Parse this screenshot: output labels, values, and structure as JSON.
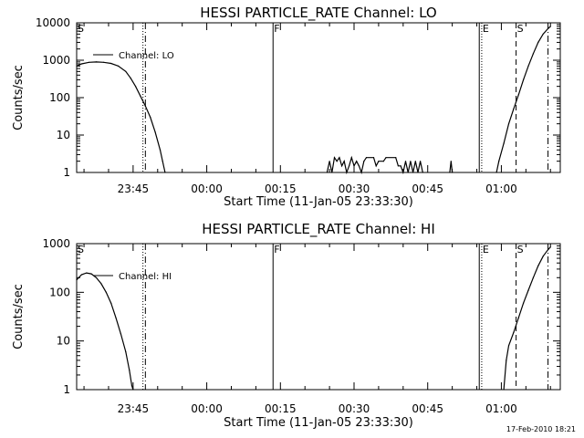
{
  "chart_data": [
    {
      "type": "line",
      "title": "HESSI PARTICLE_RATE Channel: LO",
      "xlabel": "Start Time (11-Jan-05 23:33:30)",
      "ylabel": "Counts/sec",
      "yscale": "log",
      "ylim": [
        1,
        10000
      ],
      "xlim": [
        "23:33:30",
        "01:12:00"
      ],
      "x_ticks": [
        "23:45",
        "00:00",
        "00:15",
        "00:30",
        "00:45",
        "01:00"
      ],
      "y_ticks": [
        "1",
        "10",
        "100",
        "1000",
        "10000"
      ],
      "legend": {
        "position": "top-left",
        "entries": [
          "Channel: LO"
        ]
      },
      "grid": false,
      "event_markers": [
        {
          "label": "S",
          "time": "23:33:30",
          "style": "solid"
        },
        {
          "label": "",
          "time": "23:47:00",
          "style": "dotted"
        },
        {
          "label": "",
          "time": "23:47:30",
          "style": "dashdot"
        },
        {
          "label": "F",
          "time": "00:13:30",
          "style": "solid"
        },
        {
          "label": "",
          "time": "00:55:30",
          "style": "solid"
        },
        {
          "label": "E",
          "time": "00:56:00",
          "style": "dotted"
        },
        {
          "label": "S",
          "time": "01:03:00",
          "style": "dashed"
        },
        {
          "label": "",
          "time": "01:09:30",
          "style": "dashdot"
        }
      ],
      "series": [
        {
          "name": "Channel: LO",
          "segments": [
            [
              [
                "23:33:30",
                700
              ],
              [
                "23:34:30",
                800
              ],
              [
                "23:36:00",
                880
              ],
              [
                "23:37:30",
                900
              ],
              [
                "23:39:00",
                880
              ],
              [
                "23:40:30",
                820
              ],
              [
                "23:42:00",
                700
              ],
              [
                "23:43:30",
                500
              ],
              [
                "23:44:30",
                330
              ],
              [
                "23:45:30",
                200
              ],
              [
                "23:46:30",
                110
              ],
              [
                "23:47:30",
                60
              ],
              [
                "23:48:30",
                30
              ],
              [
                "23:49:30",
                12
              ],
              [
                "23:50:30",
                4
              ],
              [
                "23:51:00",
                2
              ],
              [
                "23:51:30",
                1
              ]
            ],
            [
              [
                "00:24:30",
                1
              ],
              [
                "00:25:00",
                2
              ],
              [
                "00:25:30",
                1
              ],
              [
                "00:26:00",
                2.5
              ],
              [
                "00:26:30",
                2
              ],
              [
                "00:27:00",
                2.5
              ],
              [
                "00:27:30",
                1.5
              ],
              [
                "00:28:00",
                2
              ],
              [
                "00:28:30",
                1
              ],
              [
                "00:29:00",
                1.5
              ],
              [
                "00:29:30",
                2.5
              ],
              [
                "00:30:00",
                1.5
              ],
              [
                "00:30:30",
                2
              ],
              [
                "00:31:00",
                1.5
              ],
              [
                "00:31:30",
                1
              ],
              [
                "00:32:00",
                2
              ],
              [
                "00:32:30",
                2.5
              ],
              [
                "00:34:00",
                2.5
              ],
              [
                "00:34:30",
                1.5
              ],
              [
                "00:35:00",
                2
              ],
              [
                "00:36:00",
                2
              ],
              [
                "00:36:30",
                2.5
              ],
              [
                "00:38:30",
                2.5
              ],
              [
                "00:39:00",
                1.5
              ],
              [
                "00:39:30",
                1.5
              ],
              [
                "00:40:00",
                1
              ],
              [
                "00:40:30",
                2
              ],
              [
                "00:41:00",
                1
              ],
              [
                "00:41:30",
                2
              ],
              [
                "00:42:00",
                1
              ],
              [
                "00:42:30",
                2
              ],
              [
                "00:43:00",
                1
              ],
              [
                "00:43:30",
                2
              ],
              [
                "00:44:00",
                1
              ]
            ],
            [
              [
                "00:49:30",
                1
              ],
              [
                "00:49:45",
                2
              ],
              [
                "00:50:00",
                1
              ]
            ],
            [
              [
                "00:59:00",
                1
              ],
              [
                "00:59:30",
                2
              ],
              [
                "01:00:30",
                6
              ],
              [
                "01:01:30",
                20
              ],
              [
                "01:02:30",
                50
              ],
              [
                "01:03:30",
                120
              ],
              [
                "01:04:30",
                300
              ],
              [
                "01:05:30",
                700
              ],
              [
                "01:06:30",
                1500
              ],
              [
                "01:07:30",
                3000
              ],
              [
                "01:08:30",
                5000
              ],
              [
                "01:09:30",
                7000
              ],
              [
                "01:10:00",
                8000
              ]
            ]
          ]
        }
      ]
    },
    {
      "type": "line",
      "title": "HESSI PARTICLE_RATE Channel: HI",
      "xlabel": "Start Time (11-Jan-05 23:33:30)",
      "ylabel": "Counts/sec",
      "yscale": "log",
      "ylim": [
        1,
        1000
      ],
      "xlim": [
        "23:33:30",
        "01:12:00"
      ],
      "x_ticks": [
        "23:45",
        "00:00",
        "00:15",
        "00:30",
        "00:45",
        "01:00"
      ],
      "y_ticks": [
        "1",
        "10",
        "100",
        "1000"
      ],
      "legend": {
        "position": "top-left",
        "entries": [
          "Channel: HI"
        ]
      },
      "grid": false,
      "event_markers": [
        {
          "label": "S",
          "time": "23:33:30",
          "style": "solid"
        },
        {
          "label": "",
          "time": "23:47:00",
          "style": "dotted"
        },
        {
          "label": "",
          "time": "23:47:30",
          "style": "dashdot"
        },
        {
          "label": "F",
          "time": "00:13:30",
          "style": "solid"
        },
        {
          "label": "",
          "time": "00:55:30",
          "style": "solid"
        },
        {
          "label": "E",
          "time": "00:56:00",
          "style": "dotted"
        },
        {
          "label": "S",
          "time": "01:03:00",
          "style": "dashed"
        },
        {
          "label": "",
          "time": "01:09:30",
          "style": "dashdot"
        }
      ],
      "series": [
        {
          "name": "Channel: HI",
          "segments": [
            [
              [
                "23:33:30",
                180
              ],
              [
                "23:34:30",
                230
              ],
              [
                "23:35:30",
                250
              ],
              [
                "23:36:30",
                240
              ],
              [
                "23:37:30",
                200
              ],
              [
                "23:38:30",
                150
              ],
              [
                "23:39:30",
                100
              ],
              [
                "23:40:30",
                60
              ],
              [
                "23:41:30",
                30
              ],
              [
                "23:42:30",
                14
              ],
              [
                "23:43:30",
                6
              ],
              [
                "23:44:15",
                2.5
              ],
              [
                "23:44:45",
                1.2
              ],
              [
                "23:45:00",
                1
              ]
            ],
            [
              [
                "01:00:30",
                1
              ],
              [
                "01:01:00",
                4
              ],
              [
                "01:01:30",
                8
              ],
              [
                "01:02:30",
                15
              ],
              [
                "01:03:30",
                30
              ],
              [
                "01:04:30",
                60
              ],
              [
                "01:05:30",
                110
              ],
              [
                "01:06:30",
                200
              ],
              [
                "01:07:30",
                350
              ],
              [
                "01:08:30",
                550
              ],
              [
                "01:09:30",
                750
              ],
              [
                "01:10:00",
                850
              ]
            ]
          ]
        }
      ]
    }
  ],
  "footer": {
    "timestamp": "17-Feb-2010 18:21"
  }
}
